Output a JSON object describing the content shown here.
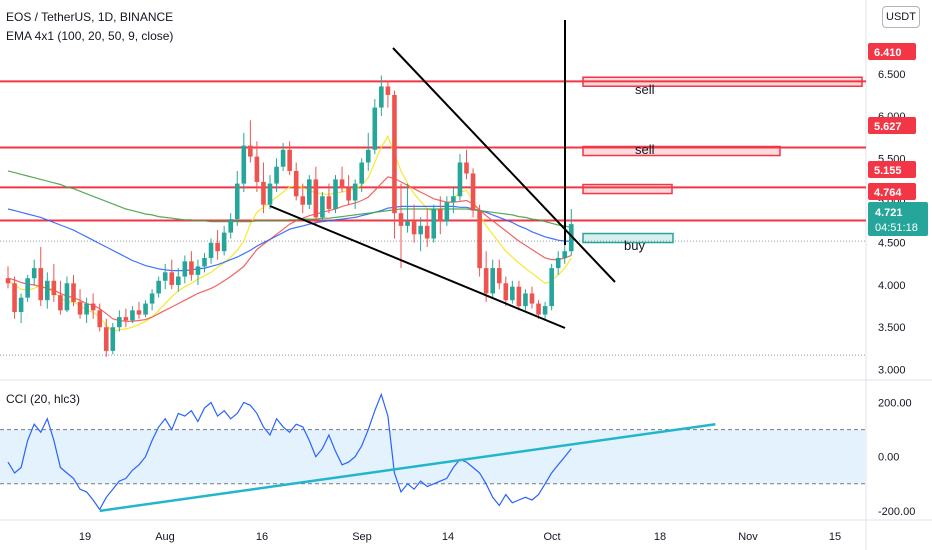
{
  "header": {
    "symbol_line": "EOS / TetherUS, 1D, BINANCE",
    "ema_line": "EMA 4x1 (100, 20, 50, 9, close)",
    "cci_line": "CCI (20, hlc3)",
    "currency_button": "USDT"
  },
  "annotations": {
    "sell_1": "sell",
    "sell_2": "sell",
    "buy": "buy"
  },
  "colors": {
    "up": "#26a69a",
    "down": "#ef5350",
    "level": "#f23645",
    "ema_9": "#f5e61b",
    "ema_20": "#ef5350",
    "ema_50": "#2962ff",
    "ema_100": "#43a047",
    "cci_line": "#2962ff",
    "cci_band": "#e3f2fd",
    "cci_trend": "#22b5cc",
    "pattern": "#000000"
  },
  "chart_data": [
    {
      "type": "candlestick",
      "title": "EOS / TetherUS, 1D, BINANCE",
      "subtitle": "EMA 4x1 (100, 20, 50, 9, close)",
      "x_tick_labels": [
        "19",
        "Aug",
        "16",
        "Sep",
        "14",
        "Oct",
        "18",
        "Nov",
        "15"
      ],
      "y_ticks": [
        3.0,
        3.5,
        4.0,
        4.5,
        5.0,
        5.5,
        6.0,
        6.5
      ],
      "y_tick_labels": [
        "3.000",
        "3.500",
        "4.000",
        "4.500",
        "5.000",
        "5.500",
        "6.000",
        "6.500"
      ],
      "ylim": [
        2.97,
        6.9
      ],
      "price_labels": [
        {
          "text": "6.410",
          "value": 6.41,
          "color": "#f23645"
        },
        {
          "text": "5.627",
          "value": 5.627,
          "color": "#f23645"
        },
        {
          "text": "5.155",
          "value": 5.155,
          "color": "#f23645"
        },
        {
          "text": "4.764",
          "value": 4.764,
          "color": "#f23645"
        },
        {
          "text": "4.721",
          "value": 4.721,
          "color": "#26a69a"
        }
      ],
      "countdown": "04:51:18",
      "last_price": 4.721,
      "resistance_levels": [
        6.41,
        5.627,
        5.155,
        4.764
      ],
      "support_dotted": 3.17,
      "zones": [
        {
          "value": 6.4,
          "kind": "sell"
        },
        {
          "value": 5.58,
          "kind": "sell"
        },
        {
          "value": 5.13,
          "kind": "sell"
        },
        {
          "value": 4.55,
          "kind": "buy"
        }
      ],
      "candles": [
        {
          "o": 4.08,
          "h": 4.22,
          "l": 3.96,
          "c": 4.02
        },
        {
          "o": 4.02,
          "h": 4.1,
          "l": 3.6,
          "c": 3.68
        },
        {
          "o": 3.68,
          "h": 3.9,
          "l": 3.55,
          "c": 3.85
        },
        {
          "o": 3.85,
          "h": 4.12,
          "l": 3.8,
          "c": 4.08
        },
        {
          "o": 4.08,
          "h": 4.3,
          "l": 4.0,
          "c": 4.2
        },
        {
          "o": 4.2,
          "h": 4.45,
          "l": 3.75,
          "c": 3.82
        },
        {
          "o": 3.82,
          "h": 4.15,
          "l": 3.72,
          "c": 4.05
        },
        {
          "o": 4.05,
          "h": 4.25,
          "l": 3.8,
          "c": 3.88
        },
        {
          "o": 3.88,
          "h": 4.05,
          "l": 3.65,
          "c": 3.7
        },
        {
          "o": 3.7,
          "h": 4.1,
          "l": 3.68,
          "c": 4.02
        },
        {
          "o": 4.02,
          "h": 4.12,
          "l": 3.75,
          "c": 3.8
        },
        {
          "o": 3.8,
          "h": 3.95,
          "l": 3.6,
          "c": 3.65
        },
        {
          "o": 3.65,
          "h": 3.85,
          "l": 3.55,
          "c": 3.78
        },
        {
          "o": 3.78,
          "h": 3.9,
          "l": 3.6,
          "c": 3.7
        },
        {
          "o": 3.7,
          "h": 3.78,
          "l": 3.45,
          "c": 3.5
        },
        {
          "o": 3.5,
          "h": 3.6,
          "l": 3.15,
          "c": 3.22
        },
        {
          "o": 3.22,
          "h": 3.55,
          "l": 3.18,
          "c": 3.5
        },
        {
          "o": 3.5,
          "h": 3.7,
          "l": 3.45,
          "c": 3.62
        },
        {
          "o": 3.62,
          "h": 3.72,
          "l": 3.5,
          "c": 3.58
        },
        {
          "o": 3.58,
          "h": 3.75,
          "l": 3.55,
          "c": 3.7
        },
        {
          "o": 3.7,
          "h": 3.8,
          "l": 3.6,
          "c": 3.65
        },
        {
          "o": 3.65,
          "h": 3.82,
          "l": 3.62,
          "c": 3.78
        },
        {
          "o": 3.78,
          "h": 3.95,
          "l": 3.7,
          "c": 3.9
        },
        {
          "o": 3.9,
          "h": 4.1,
          "l": 3.85,
          "c": 4.05
        },
        {
          "o": 4.05,
          "h": 4.25,
          "l": 3.95,
          "c": 4.15
        },
        {
          "o": 4.15,
          "h": 4.3,
          "l": 3.95,
          "c": 4.0
        },
        {
          "o": 4.0,
          "h": 4.2,
          "l": 3.92,
          "c": 4.1
        },
        {
          "o": 4.1,
          "h": 4.35,
          "l": 4.02,
          "c": 4.28
        },
        {
          "o": 4.28,
          "h": 4.4,
          "l": 4.05,
          "c": 4.12
        },
        {
          "o": 4.12,
          "h": 4.3,
          "l": 4.0,
          "c": 4.22
        },
        {
          "o": 4.22,
          "h": 4.38,
          "l": 4.15,
          "c": 4.32
        },
        {
          "o": 4.32,
          "h": 4.55,
          "l": 4.25,
          "c": 4.5
        },
        {
          "o": 4.5,
          "h": 4.65,
          "l": 4.3,
          "c": 4.4
        },
        {
          "o": 4.4,
          "h": 4.7,
          "l": 4.35,
          "c": 4.62
        },
        {
          "o": 4.62,
          "h": 4.85,
          "l": 4.55,
          "c": 4.78
        },
        {
          "o": 4.78,
          "h": 5.35,
          "l": 4.7,
          "c": 5.2
        },
        {
          "o": 5.2,
          "h": 5.8,
          "l": 5.1,
          "c": 5.65
        },
        {
          "o": 5.65,
          "h": 5.95,
          "l": 5.45,
          "c": 5.52
        },
        {
          "o": 5.52,
          "h": 5.7,
          "l": 5.1,
          "c": 5.22
        },
        {
          "o": 5.22,
          "h": 5.45,
          "l": 4.85,
          "c": 4.95
        },
        {
          "o": 4.95,
          "h": 5.3,
          "l": 4.9,
          "c": 5.2
        },
        {
          "o": 5.2,
          "h": 5.5,
          "l": 5.1,
          "c": 5.4
        },
        {
          "o": 5.4,
          "h": 5.68,
          "l": 5.35,
          "c": 5.6
        },
        {
          "o": 5.6,
          "h": 5.7,
          "l": 5.3,
          "c": 5.35
        },
        {
          "o": 5.35,
          "h": 5.45,
          "l": 5.0,
          "c": 5.05
        },
        {
          "o": 5.05,
          "h": 5.2,
          "l": 4.85,
          "c": 4.95
        },
        {
          "o": 4.95,
          "h": 5.3,
          "l": 4.9,
          "c": 5.25
        },
        {
          "o": 5.25,
          "h": 5.4,
          "l": 4.7,
          "c": 4.8
        },
        {
          "o": 4.8,
          "h": 5.1,
          "l": 4.75,
          "c": 5.05
        },
        {
          "o": 5.05,
          "h": 5.2,
          "l": 4.85,
          "c": 4.9
        },
        {
          "o": 4.9,
          "h": 5.3,
          "l": 4.85,
          "c": 5.25
        },
        {
          "o": 5.25,
          "h": 5.4,
          "l": 5.1,
          "c": 5.15
        },
        {
          "o": 5.15,
          "h": 5.3,
          "l": 4.95,
          "c": 5.0
        },
        {
          "o": 5.0,
          "h": 5.25,
          "l": 4.9,
          "c": 5.2
        },
        {
          "o": 5.2,
          "h": 5.5,
          "l": 5.1,
          "c": 5.45
        },
        {
          "o": 5.45,
          "h": 5.8,
          "l": 5.35,
          "c": 5.6
        },
        {
          "o": 5.6,
          "h": 6.2,
          "l": 5.55,
          "c": 6.1
        },
        {
          "o": 6.1,
          "h": 6.48,
          "l": 6.0,
          "c": 6.35
        },
        {
          "o": 6.35,
          "h": 6.42,
          "l": 6.1,
          "c": 6.25
        },
        {
          "o": 6.25,
          "h": 6.3,
          "l": 4.55,
          "c": 4.85
        },
        {
          "o": 4.85,
          "h": 5.2,
          "l": 4.2,
          "c": 4.7
        },
        {
          "o": 4.7,
          "h": 5.2,
          "l": 4.62,
          "c": 4.75
        },
        {
          "o": 4.75,
          "h": 4.95,
          "l": 4.5,
          "c": 4.6
        },
        {
          "o": 4.6,
          "h": 4.8,
          "l": 4.4,
          "c": 4.7
        },
        {
          "o": 4.7,
          "h": 4.9,
          "l": 4.45,
          "c": 4.55
        },
        {
          "o": 4.55,
          "h": 4.95,
          "l": 4.5,
          "c": 4.9
        },
        {
          "o": 4.9,
          "h": 5.05,
          "l": 4.6,
          "c": 4.75
        },
        {
          "o": 4.75,
          "h": 5.05,
          "l": 4.7,
          "c": 4.98
        },
        {
          "o": 4.98,
          "h": 5.15,
          "l": 4.85,
          "c": 5.05
        },
        {
          "o": 5.05,
          "h": 5.55,
          "l": 5.0,
          "c": 5.45
        },
        {
          "o": 5.45,
          "h": 5.6,
          "l": 5.25,
          "c": 5.32
        },
        {
          "o": 5.32,
          "h": 5.38,
          "l": 4.8,
          "c": 4.88
        },
        {
          "o": 4.88,
          "h": 4.95,
          "l": 4.1,
          "c": 4.2
        },
        {
          "o": 4.2,
          "h": 4.4,
          "l": 3.8,
          "c": 3.9
        },
        {
          "o": 3.9,
          "h": 4.3,
          "l": 3.85,
          "c": 4.2
        },
        {
          "o": 4.2,
          "h": 4.3,
          "l": 3.95,
          "c": 4.02
        },
        {
          "o": 4.02,
          "h": 4.1,
          "l": 3.75,
          "c": 3.82
        },
        {
          "o": 3.82,
          "h": 4.05,
          "l": 3.78,
          "c": 3.98
        },
        {
          "o": 3.98,
          "h": 4.05,
          "l": 3.7,
          "c": 3.75
        },
        {
          "o": 3.75,
          "h": 3.95,
          "l": 3.7,
          "c": 3.9
        },
        {
          "o": 3.9,
          "h": 3.98,
          "l": 3.72,
          "c": 3.78
        },
        {
          "o": 3.78,
          "h": 3.82,
          "l": 3.6,
          "c": 3.65
        },
        {
          "o": 3.65,
          "h": 3.8,
          "l": 3.58,
          "c": 3.75
        },
        {
          "o": 3.75,
          "h": 4.25,
          "l": 3.7,
          "c": 4.2
        },
        {
          "o": 4.2,
          "h": 4.4,
          "l": 4.12,
          "c": 4.32
        },
        {
          "o": 4.32,
          "h": 4.5,
          "l": 4.25,
          "c": 4.4
        },
        {
          "o": 4.4,
          "h": 4.9,
          "l": 4.35,
          "c": 4.72
        }
      ],
      "ema_series": [
        {
          "name": "EMA 9",
          "values": [
            4.05,
            4.0,
            3.95,
            3.94,
            3.96,
            4.0,
            3.95,
            3.92,
            3.85,
            3.8,
            3.8,
            3.76,
            3.7,
            3.68,
            3.62,
            3.52,
            3.45,
            3.47,
            3.48,
            3.5,
            3.53,
            3.57,
            3.62,
            3.7,
            3.78,
            3.86,
            3.93,
            3.98,
            4.02,
            4.07,
            4.11,
            4.15,
            4.21,
            4.26,
            4.33,
            4.41,
            4.52,
            4.72,
            4.86,
            4.92,
            4.98,
            5.04,
            5.1,
            5.16,
            5.18,
            5.15,
            5.12,
            5.09,
            5.08,
            5.07,
            5.09,
            5.1,
            5.12,
            5.14,
            5.18,
            5.27,
            5.45,
            5.63,
            5.76,
            5.55,
            5.35,
            5.2,
            5.08,
            4.99,
            4.9,
            4.87,
            4.9,
            4.95,
            5.02,
            5.1,
            5.12,
            5.0,
            4.84,
            4.7,
            4.6,
            4.5,
            4.4,
            4.33,
            4.26,
            4.2,
            4.14,
            4.08,
            4.02,
            4.05,
            4.12,
            4.2,
            4.32
          ]
        },
        {
          "name": "EMA 20",
          "values": [
            4.08,
            4.06,
            4.03,
            4.01,
            4.0,
            3.98,
            3.96,
            3.94,
            3.9,
            3.87,
            3.85,
            3.82,
            3.78,
            3.76,
            3.72,
            3.66,
            3.6,
            3.58,
            3.57,
            3.57,
            3.58,
            3.59,
            3.62,
            3.66,
            3.7,
            3.74,
            3.78,
            3.82,
            3.86,
            3.9,
            3.93,
            3.96,
            4.0,
            4.05,
            4.1,
            4.16,
            4.22,
            4.32,
            4.42,
            4.48,
            4.54,
            4.6,
            4.66,
            4.72,
            4.76,
            4.79,
            4.82,
            4.84,
            4.86,
            4.88,
            4.9,
            4.93,
            4.95,
            4.97,
            5.0,
            5.04,
            5.12,
            5.2,
            5.28,
            5.26,
            5.22,
            5.18,
            5.14,
            5.1,
            5.06,
            5.02,
            5.0,
            4.98,
            4.98,
            4.99,
            5.0,
            4.96,
            4.89,
            4.82,
            4.76,
            4.7,
            4.64,
            4.58,
            4.52,
            4.47,
            4.42,
            4.37,
            4.32,
            4.3,
            4.3,
            4.32,
            4.35
          ]
        },
        {
          "name": "EMA 50",
          "values": [
            4.9,
            4.88,
            4.86,
            4.84,
            4.82,
            4.8,
            4.77,
            4.74,
            4.71,
            4.68,
            4.65,
            4.61,
            4.57,
            4.53,
            4.49,
            4.45,
            4.41,
            4.37,
            4.33,
            4.29,
            4.26,
            4.23,
            4.21,
            4.19,
            4.18,
            4.17,
            4.17,
            4.17,
            4.18,
            4.19,
            4.2,
            4.22,
            4.24,
            4.27,
            4.3,
            4.33,
            4.37,
            4.41,
            4.46,
            4.5,
            4.54,
            4.58,
            4.62,
            4.66,
            4.68,
            4.7,
            4.72,
            4.74,
            4.75,
            4.76,
            4.77,
            4.78,
            4.79,
            4.8,
            4.82,
            4.84,
            4.86,
            4.88,
            4.91,
            4.92,
            4.93,
            4.93,
            4.93,
            4.93,
            4.93,
            4.93,
            4.93,
            4.93,
            4.93,
            4.92,
            4.92,
            4.9,
            4.88,
            4.86,
            4.83,
            4.8,
            4.77,
            4.74,
            4.7,
            4.67,
            4.63,
            4.6,
            4.57,
            4.55,
            4.53,
            4.52,
            4.52
          ]
        },
        {
          "name": "EMA 100",
          "values": [
            5.35,
            5.33,
            5.31,
            5.29,
            5.27,
            5.25,
            5.23,
            5.21,
            5.19,
            5.16,
            5.14,
            5.11,
            5.08,
            5.05,
            5.02,
            4.99,
            4.96,
            4.93,
            4.9,
            4.88,
            4.86,
            4.84,
            4.83,
            4.81,
            4.8,
            4.79,
            4.78,
            4.77,
            4.77,
            4.76,
            4.76,
            4.75,
            4.75,
            4.75,
            4.75,
            4.75,
            4.75,
            4.75,
            4.76,
            4.76,
            4.76,
            4.76,
            4.76,
            4.77,
            4.77,
            4.78,
            4.78,
            4.78,
            4.79,
            4.79,
            4.8,
            4.81,
            4.82,
            4.83,
            4.84,
            4.85,
            4.86,
            4.87,
            4.88,
            4.89,
            4.9,
            4.9,
            4.9,
            4.9,
            4.9,
            4.9,
            4.9,
            4.9,
            4.9,
            4.9,
            4.9,
            4.89,
            4.88,
            4.87,
            4.86,
            4.85,
            4.84,
            4.83,
            4.81,
            4.8,
            4.78,
            4.77,
            4.75,
            4.73,
            4.71,
            4.7,
            4.68
          ]
        }
      ]
    },
    {
      "type": "line",
      "title": "CCI (20, hlc3)",
      "series_name": "CCI",
      "y_ticks": [
        200,
        0,
        -200
      ],
      "y_tick_labels": [
        "200.00",
        "0.00",
        "-200.00"
      ],
      "ylim": [
        -230,
        250
      ],
      "band": [
        -100,
        100
      ],
      "values": [
        -20,
        -60,
        -40,
        60,
        120,
        90,
        140,
        60,
        -40,
        -60,
        -80,
        -120,
        -130,
        -160,
        -195,
        -150,
        -120,
        -90,
        -80,
        -50,
        -30,
        0,
        60,
        110,
        140,
        100,
        160,
        150,
        170,
        130,
        180,
        200,
        150,
        170,
        140,
        160,
        200,
        190,
        160,
        110,
        80,
        140,
        110,
        90,
        120,
        110,
        60,
        0,
        30,
        80,
        20,
        -30,
        -20,
        0,
        40,
        100,
        170,
        230,
        150,
        -60,
        -130,
        -100,
        -120,
        -90,
        -110,
        -100,
        -90,
        -80,
        -40,
        -10,
        -20,
        -40,
        -60,
        -100,
        -150,
        -180,
        -140,
        -170,
        -160,
        -150,
        -160,
        -140,
        -100,
        -60,
        -30,
        0,
        30
      ],
      "trendline": [
        {
          "i": 14,
          "v": -200
        },
        {
          "i": 108,
          "v": 120
        }
      ]
    }
  ]
}
